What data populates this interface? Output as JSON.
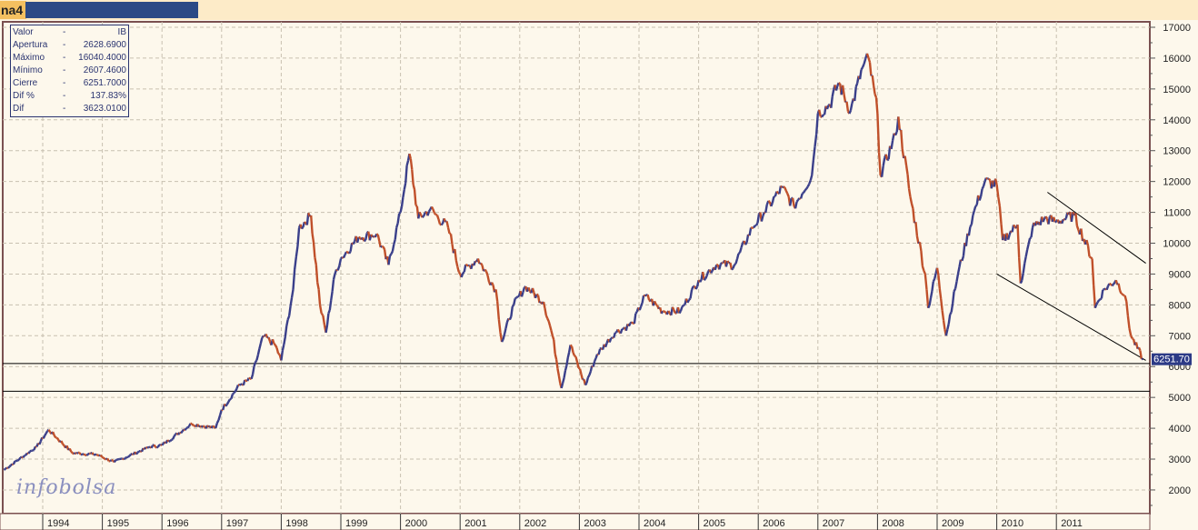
{
  "window": {
    "tab_label": "na4"
  },
  "info_box": {
    "rows": [
      {
        "label": "Valor",
        "sep": "-",
        "value": "IB"
      },
      {
        "label": "Apertura",
        "sep": "-",
        "value": "2628.6900"
      },
      {
        "label": "Máximo",
        "sep": "-",
        "value": "16040.4000"
      },
      {
        "label": "Mínimo",
        "sep": "-",
        "value": "2607.4600"
      },
      {
        "label": "Cierre",
        "sep": "-",
        "value": "6251.7000"
      },
      {
        "label": "Dif %",
        "sep": "-",
        "value": "137.83%"
      },
      {
        "label": "Dif",
        "sep": "-",
        "value": "3623.0100"
      }
    ]
  },
  "logo": "infobolsa",
  "chart_data": {
    "type": "line",
    "title": "",
    "ylim": [
      1300,
      17300
    ],
    "y_ticks": [
      2000,
      3000,
      4000,
      5000,
      6000,
      7000,
      8000,
      9000,
      10000,
      11000,
      12000,
      13000,
      14000,
      15000,
      16000,
      17000
    ],
    "x_ticks": [
      "1994",
      "1995",
      "1996",
      "1997",
      "1998",
      "1999",
      "2000",
      "2001",
      "2002",
      "2003",
      "2004",
      "2005",
      "2006",
      "2007",
      "2008",
      "2009",
      "2010",
      "2011"
    ],
    "last_value_label": "6251.70",
    "grid": true,
    "colors": {
      "up": "#3a3f8a",
      "down": "#c0502a"
    },
    "horizontal_lines": [
      6100,
      5200
    ],
    "trend_lines": [
      {
        "from": [
          2010.85,
          11650
        ],
        "to": [
          2012.5,
          9350
        ]
      },
      {
        "from": [
          2010.0,
          9000
        ],
        "to": [
          2012.5,
          6200
        ]
      }
    ],
    "series": [
      {
        "x": [
          1993.35,
          1993.9,
          1994.1,
          1994.5,
          1994.9,
          1995.2,
          1995.8,
          1996.0,
          1996.5,
          1996.9,
          1997.0,
          1997.3,
          1997.5,
          1997.7,
          1997.9,
          1998.0,
          1998.2,
          1998.3,
          1998.5,
          1998.65,
          1998.75,
          1998.9,
          1999.0,
          1999.3,
          1999.6,
          1999.8,
          2000.0,
          2000.15,
          2000.3,
          2000.5,
          2000.8,
          2001.0,
          2001.3,
          2001.6,
          2001.7,
          2001.9,
          2002.1,
          2002.4,
          2002.55,
          2002.7,
          2002.85,
          2003.1,
          2003.3,
          2003.6,
          2003.9,
          2004.1,
          2004.4,
          2004.7,
          2005.0,
          2005.3,
          2005.6,
          2005.9,
          2006.1,
          2006.4,
          2006.6,
          2006.9,
          2007.0,
          2007.2,
          2007.35,
          2007.55,
          2007.75,
          2007.85,
          2008.0,
          2008.05,
          2008.3,
          2008.35,
          2008.55,
          2008.8,
          2008.85,
          2009.0,
          2009.15,
          2009.35,
          2009.6,
          2009.8,
          2010.0,
          2010.1,
          2010.35,
          2010.4,
          2010.6,
          2010.8,
          2011.0,
          2011.3,
          2011.6,
          2011.65,
          2011.8,
          2012.0,
          2012.15,
          2012.25,
          2012.45
        ],
        "y": [
          2650,
          3400,
          3950,
          3200,
          3150,
          2900,
          3400,
          3450,
          4150,
          4000,
          4600,
          5400,
          5600,
          7000,
          6700,
          6200,
          8500,
          10500,
          10900,
          8000,
          7100,
          9000,
          9500,
          10200,
          10300,
          9300,
          11000,
          12900,
          10800,
          11100,
          10500,
          9000,
          9500,
          8500,
          6800,
          8000,
          8600,
          8100,
          7000,
          5300,
          6700,
          5400,
          6400,
          7100,
          7400,
          8300,
          7800,
          7800,
          8800,
          9300,
          9300,
          10500,
          11000,
          11800,
          11200,
          12200,
          14200,
          14500,
          15200,
          14300,
          15700,
          16000,
          14200,
          12200,
          13500,
          14100,
          11500,
          9000,
          7900,
          9200,
          7000,
          9000,
          10900,
          12000,
          11900,
          10100,
          10600,
          8700,
          10500,
          10800,
          10700,
          10900,
          9500,
          7900,
          8500,
          8800,
          8300,
          7000,
          6250
        ]
      }
    ]
  }
}
